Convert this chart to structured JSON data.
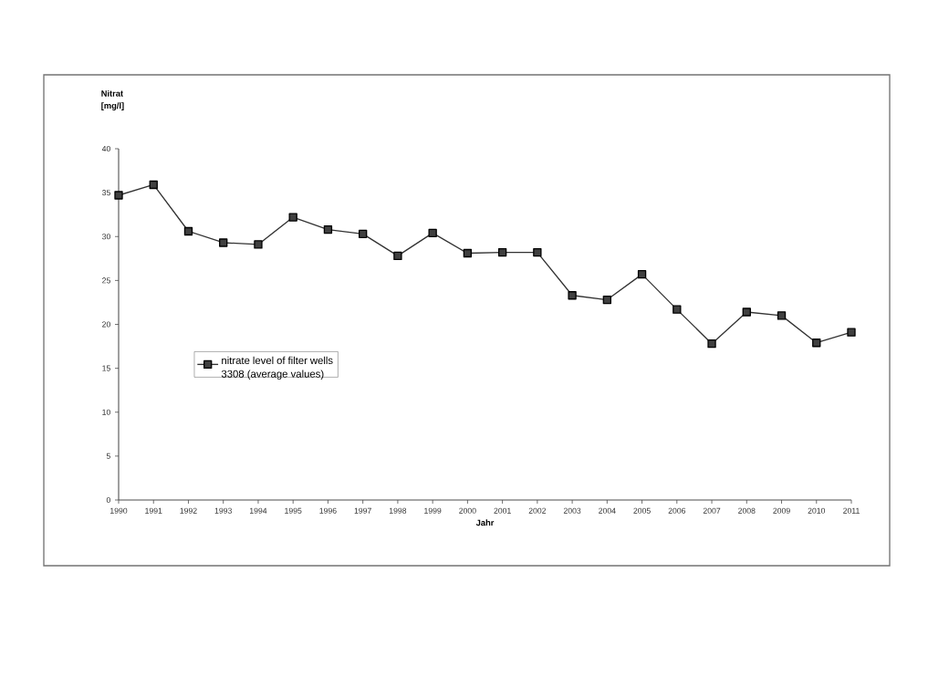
{
  "chart_data": {
    "type": "line",
    "xlabel": "Jahr",
    "ylabel": "Nitrat [mg/l]",
    "categories": [
      "1990",
      "1991",
      "1992",
      "1993",
      "1994",
      "1995",
      "1996",
      "1997",
      "1998",
      "1999",
      "2000",
      "2001",
      "2002",
      "2003",
      "2004",
      "2005",
      "2006",
      "2007",
      "2008",
      "2009",
      "2010",
      "2011"
    ],
    "series": [
      {
        "name": "nitrate level of filter wells 3308 (average values)",
        "color": "#333333",
        "values": [
          34.7,
          35.9,
          30.6,
          29.3,
          29.1,
          32.2,
          30.8,
          30.3,
          27.8,
          30.4,
          28.1,
          28.2,
          28.2,
          23.3,
          22.8,
          25.7,
          21.7,
          17.8,
          21.4,
          21.0,
          17.9,
          19.1
        ]
      }
    ],
    "ylim": [
      0,
      40
    ],
    "yticks": [
      0,
      5,
      10,
      15,
      20,
      25,
      30,
      35,
      40
    ],
    "grid": false,
    "legend": "left",
    "marker": "square",
    "line_style": "solid"
  }
}
